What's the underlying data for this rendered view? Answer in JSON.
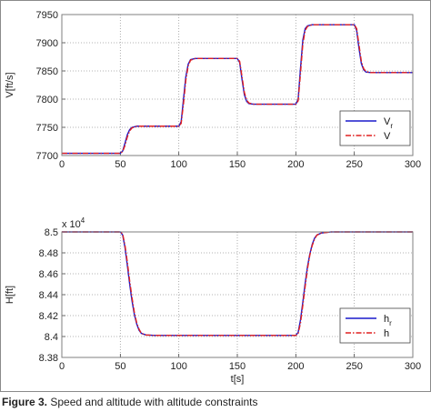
{
  "caption": {
    "label": "Figure 3.",
    "text": "Speed and altitude with altitude constraints"
  },
  "colors": {
    "reference": "#1a1acc",
    "actual": "#e02020",
    "grid": "#9a9a9a",
    "frame": "#7f7f7f"
  },
  "chart_data": [
    {
      "type": "line",
      "ylabel": "V[ft/s]",
      "xlabel": "",
      "xlim": [
        0,
        300
      ],
      "ylim": [
        7700,
        7950
      ],
      "xticks": [
        "0",
        "50",
        "100",
        "150",
        "200",
        "250",
        "300"
      ],
      "yticks": [
        "7700",
        "7750",
        "7800",
        "7850",
        "7900",
        "7950"
      ],
      "grid": true,
      "legend_position": "right",
      "series": [
        {
          "name": "V_r",
          "legend_base": "V",
          "legend_sub": "r",
          "style": "solid",
          "values": [
            [
              0,
              7704
            ],
            [
              50,
              7704
            ],
            [
              52,
              7708
            ],
            [
              54,
              7722
            ],
            [
              56,
              7737
            ],
            [
              58,
              7746
            ],
            [
              60,
              7750
            ],
            [
              64,
              7752
            ],
            [
              100,
              7752
            ],
            [
              102,
              7760
            ],
            [
              104,
              7800
            ],
            [
              106,
              7840
            ],
            [
              108,
              7862
            ],
            [
              110,
              7870
            ],
            [
              114,
              7872
            ],
            [
              150,
              7872
            ],
            [
              152,
              7865
            ],
            [
              154,
              7835
            ],
            [
              156,
              7808
            ],
            [
              158,
              7796
            ],
            [
              160,
              7792
            ],
            [
              164,
              7791
            ],
            [
              200,
              7791
            ],
            [
              202,
              7800
            ],
            [
              204,
              7855
            ],
            [
              206,
              7905
            ],
            [
              208,
              7925
            ],
            [
              210,
              7930
            ],
            [
              214,
              7932
            ],
            [
              250,
              7932
            ],
            [
              252,
              7922
            ],
            [
              254,
              7890
            ],
            [
              256,
              7863
            ],
            [
              258,
              7852
            ],
            [
              260,
              7848
            ],
            [
              264,
              7847
            ],
            [
              300,
              7847
            ]
          ]
        },
        {
          "name": "V",
          "legend_base": "V",
          "legend_sub": "",
          "style": "dashdot",
          "values": [
            [
              0,
              7704
            ],
            [
              50,
              7704
            ],
            [
              52,
              7707
            ],
            [
              54,
              7718
            ],
            [
              56,
              7733
            ],
            [
              58,
              7744
            ],
            [
              60,
              7749
            ],
            [
              64,
              7752
            ],
            [
              100,
              7752
            ],
            [
              102,
              7757
            ],
            [
              104,
              7792
            ],
            [
              106,
              7834
            ],
            [
              108,
              7859
            ],
            [
              110,
              7869
            ],
            [
              114,
              7872
            ],
            [
              150,
              7872
            ],
            [
              152,
              7867
            ],
            [
              154,
              7840
            ],
            [
              156,
              7812
            ],
            [
              158,
              7798
            ],
            [
              160,
              7793
            ],
            [
              164,
              7791
            ],
            [
              200,
              7791
            ],
            [
              202,
              7797
            ],
            [
              204,
              7846
            ],
            [
              206,
              7898
            ],
            [
              208,
              7922
            ],
            [
              210,
              7929
            ],
            [
              214,
              7932
            ],
            [
              250,
              7932
            ],
            [
              252,
              7925
            ],
            [
              254,
              7896
            ],
            [
              256,
              7867
            ],
            [
              258,
              7854
            ],
            [
              260,
              7849
            ],
            [
              264,
              7847
            ],
            [
              300,
              7847
            ]
          ]
        }
      ]
    },
    {
      "type": "line",
      "ylabel": "H[ft]",
      "xlabel": "t[s]",
      "multiplier": "x 10",
      "multiplier_exp": "4",
      "xlim": [
        0,
        300
      ],
      "ylim": [
        8.38,
        8.5
      ],
      "xticks": [
        "0",
        "50",
        "100",
        "150",
        "200",
        "250",
        "300"
      ],
      "yticks": [
        "8.38",
        "8.4",
        "8.42",
        "8.44",
        "8.46",
        "8.48",
        "8.5"
      ],
      "grid": true,
      "legend_position": "right",
      "series": [
        {
          "name": "h_r",
          "legend_base": "h",
          "legend_sub": "r",
          "style": "solid",
          "values": [
            [
              0,
              8.5
            ],
            [
              50,
              8.5
            ],
            [
              52,
              8.497
            ],
            [
              54,
              8.485
            ],
            [
              56,
              8.468
            ],
            [
              58,
              8.45
            ],
            [
              60,
              8.434
            ],
            [
              62,
              8.421
            ],
            [
              64,
              8.412
            ],
            [
              66,
              8.406
            ],
            [
              68,
              8.403
            ],
            [
              72,
              8.4015
            ],
            [
              80,
              8.401
            ],
            [
              200,
              8.401
            ],
            [
              202,
              8.404
            ],
            [
              204,
              8.416
            ],
            [
              206,
              8.433
            ],
            [
              208,
              8.451
            ],
            [
              210,
              8.467
            ],
            [
              212,
              8.479
            ],
            [
              214,
              8.488
            ],
            [
              216,
              8.494
            ],
            [
              218,
              8.497
            ],
            [
              222,
              8.499
            ],
            [
              230,
              8.5
            ],
            [
              300,
              8.5
            ]
          ]
        },
        {
          "name": "h",
          "legend_base": "h",
          "legend_sub": "",
          "style": "dashdot",
          "values": [
            [
              0,
              8.5
            ],
            [
              50,
              8.5
            ],
            [
              52,
              8.498
            ],
            [
              54,
              8.487
            ],
            [
              56,
              8.471
            ],
            [
              58,
              8.453
            ],
            [
              60,
              8.437
            ],
            [
              62,
              8.423
            ],
            [
              64,
              8.413
            ],
            [
              66,
              8.407
            ],
            [
              68,
              8.403
            ],
            [
              72,
              8.4015
            ],
            [
              80,
              8.401
            ],
            [
              200,
              8.401
            ],
            [
              202,
              8.403
            ],
            [
              204,
              8.413
            ],
            [
              206,
              8.43
            ],
            [
              208,
              8.448
            ],
            [
              210,
              8.465
            ],
            [
              212,
              8.478
            ],
            [
              214,
              8.487
            ],
            [
              216,
              8.493
            ],
            [
              218,
              8.497
            ],
            [
              222,
              8.499
            ],
            [
              230,
              8.5
            ],
            [
              300,
              8.5
            ]
          ]
        }
      ]
    }
  ]
}
